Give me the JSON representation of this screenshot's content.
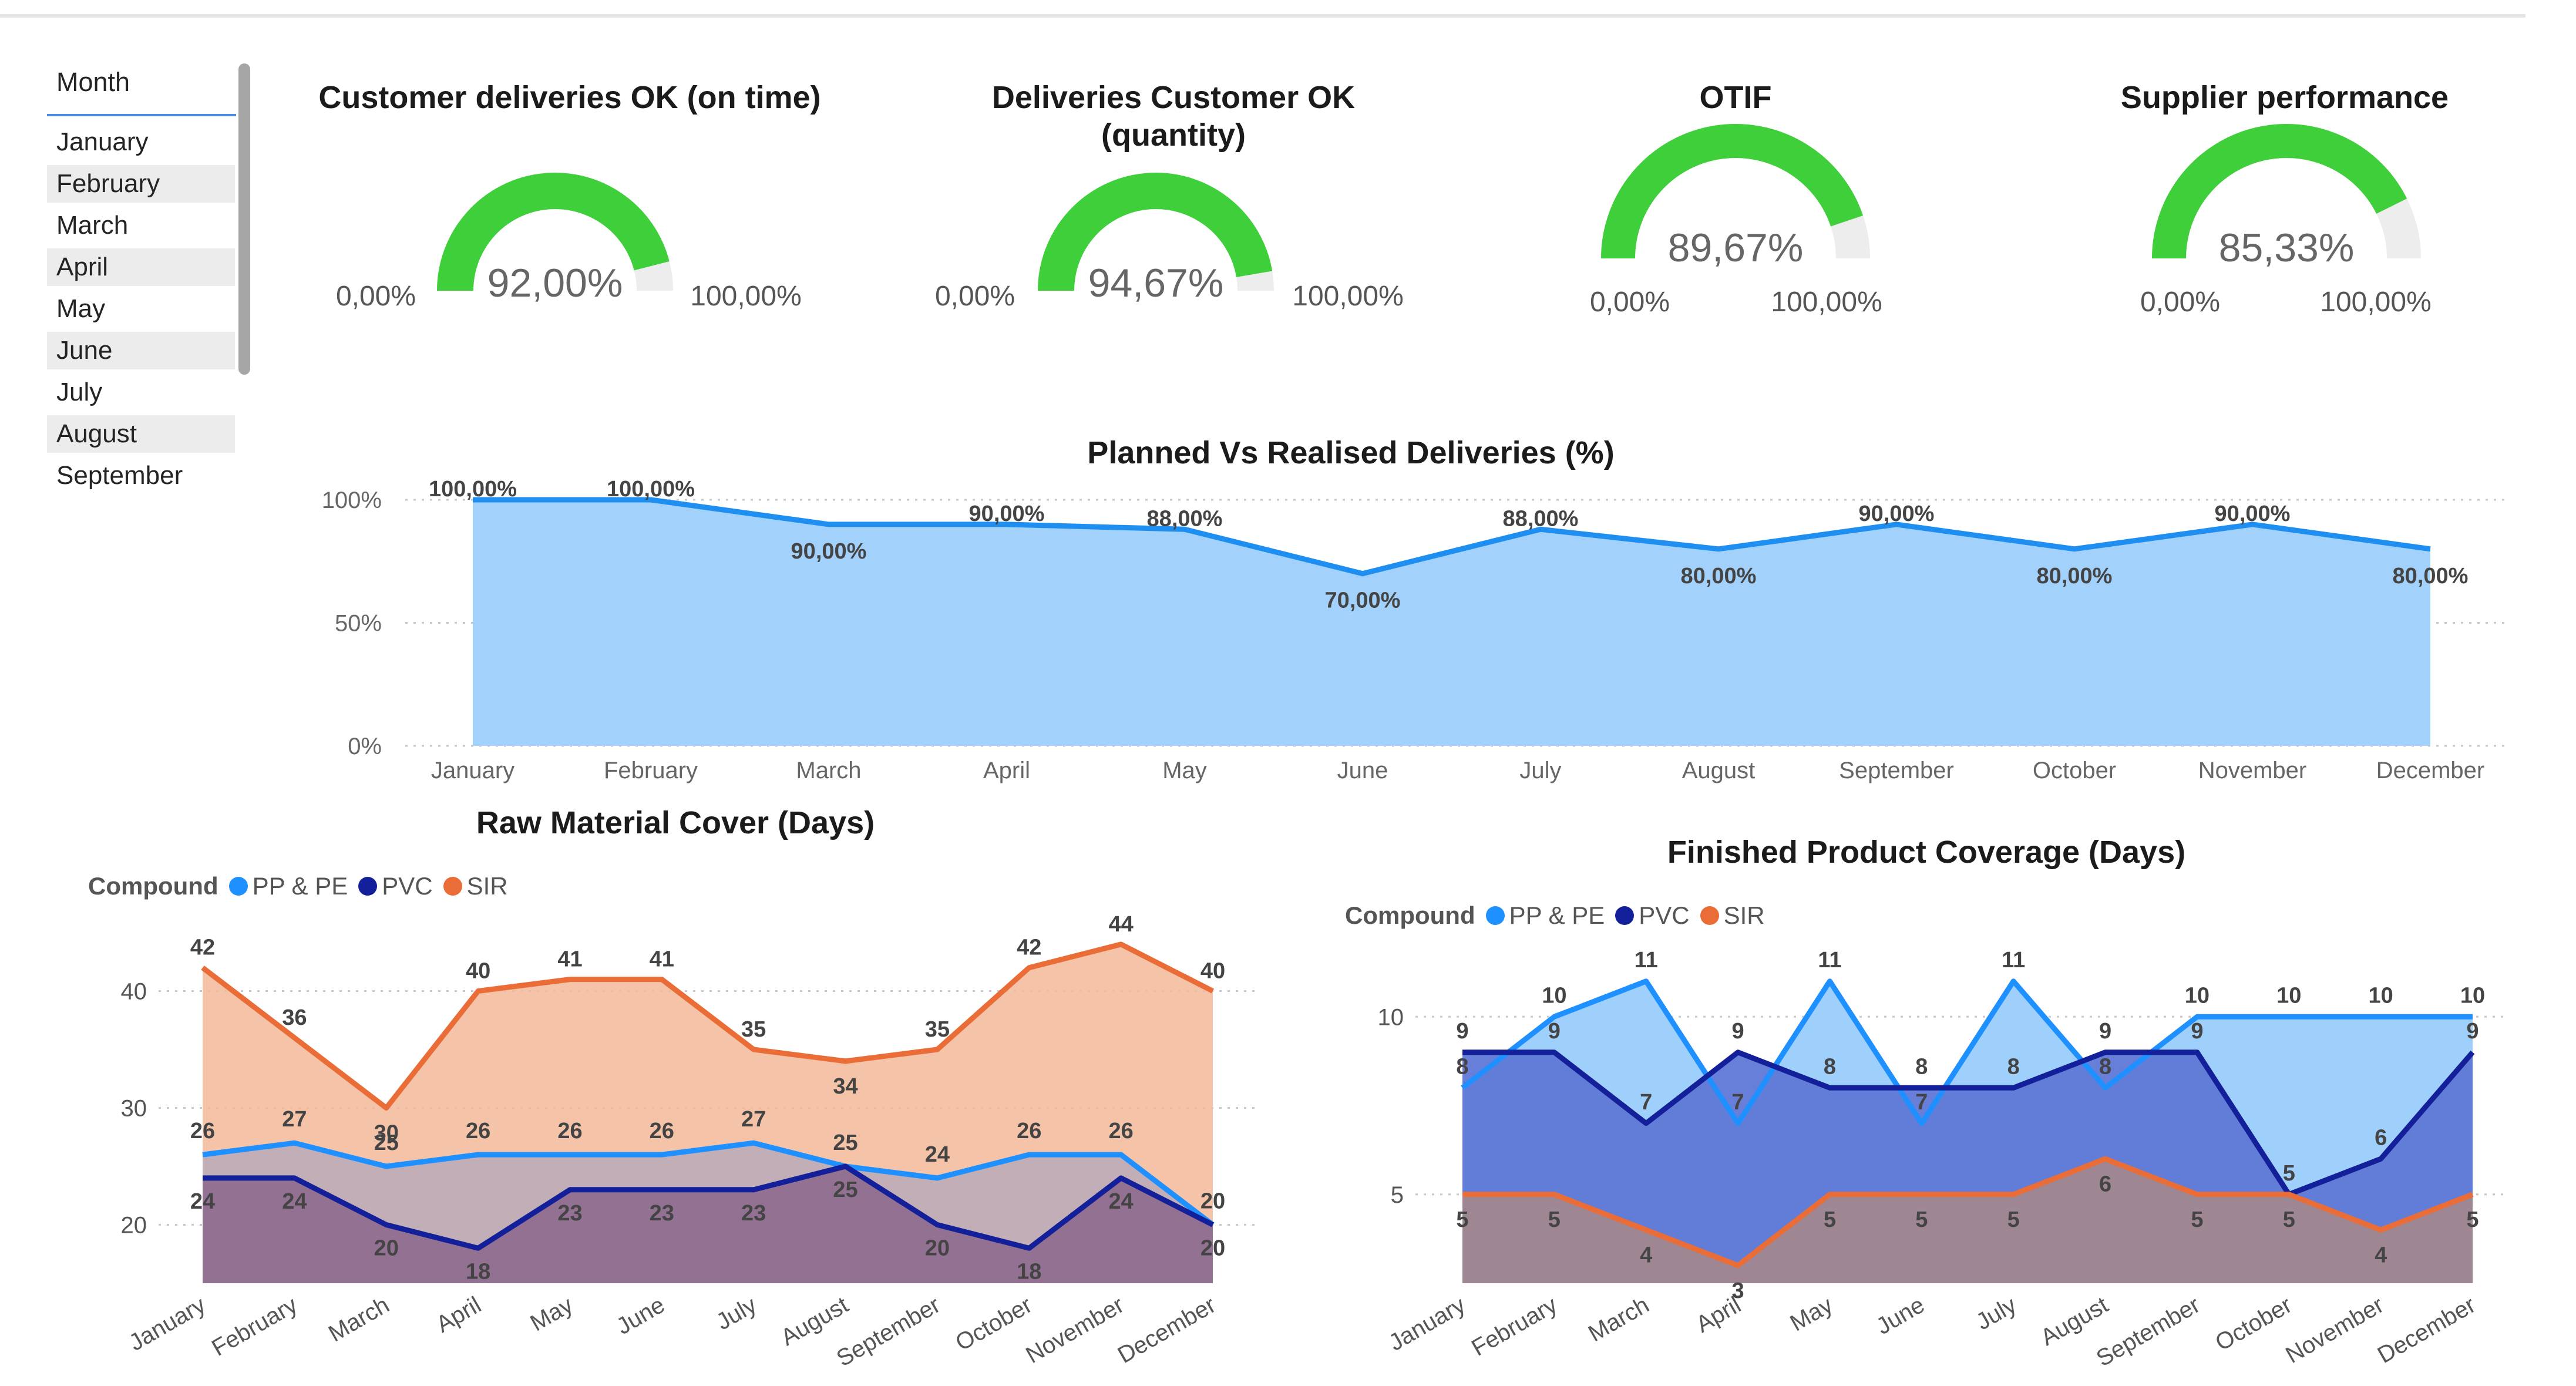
{
  "slicer": {
    "header": "Month",
    "items": [
      "January",
      "February",
      "March",
      "April",
      "May",
      "June",
      "July",
      "August",
      "September"
    ]
  },
  "gauges": [
    {
      "title_lines": [
        "Customer deliveries OK (on time)"
      ],
      "value": 92.0,
      "value_label": "92,00%",
      "min_label": "0,00%",
      "max_label": "100,00%"
    },
    {
      "title_lines": [
        "Deliveries Customer OK",
        "(quantity)"
      ],
      "value": 94.67,
      "value_label": "94,67%",
      "min_label": "0,00%",
      "max_label": "100,00%"
    },
    {
      "title_lines": [
        "OTIF"
      ],
      "value": 89.67,
      "value_label": "89,67%",
      "min_label": "0,00%",
      "max_label": "100,00%"
    },
    {
      "title_lines": [
        "Supplier performance"
      ],
      "value": 85.33,
      "value_label": "85,33%",
      "min_label": "0,00%",
      "max_label": "100,00%"
    }
  ],
  "colors": {
    "gauge_fill": "#3ecf3a",
    "gauge_bg": "#ededed",
    "pp_pe": "#1e90ff",
    "pvc": "#14209a",
    "sir": "#ea6d37",
    "planned_area": "#a2d1fc",
    "planned_line": "#1e8ff0"
  },
  "chart_data": [
    {
      "id": "planned",
      "type": "area",
      "title": "Planned Vs Realised Deliveries (%)",
      "categories": [
        "January",
        "February",
        "March",
        "April",
        "May",
        "June",
        "July",
        "August",
        "September",
        "October",
        "November",
        "December"
      ],
      "values": [
        100,
        100,
        90,
        90,
        88,
        70,
        88,
        80,
        90,
        80,
        90,
        80
      ],
      "labels": [
        "100,00%",
        "100,00%",
        "90,00%",
        "90,00%",
        "88,00%",
        "70,00%",
        "88,00%",
        "80,00%",
        "90,00%",
        "80,00%",
        "90,00%",
        "80,00%"
      ],
      "yticks": [
        "100%",
        "50%",
        "0%"
      ],
      "ylim": [
        0,
        100
      ]
    },
    {
      "id": "raw",
      "type": "area",
      "title": "Raw Material Cover (Days)",
      "legend_title": "Compound",
      "categories": [
        "January",
        "February",
        "March",
        "April",
        "May",
        "June",
        "July",
        "August",
        "September",
        "October",
        "November",
        "December"
      ],
      "series": [
        {
          "name": "PP & PE",
          "values": [
            26,
            27,
            25,
            26,
            26,
            26,
            27,
            25,
            24,
            26,
            26,
            20
          ]
        },
        {
          "name": "PVC",
          "values": [
            24,
            24,
            20,
            18,
            23,
            23,
            23,
            25,
            20,
            18,
            24,
            20
          ]
        },
        {
          "name": "SIR",
          "values": [
            42,
            36,
            30,
            40,
            41,
            41,
            35,
            34,
            35,
            42,
            44,
            40
          ]
        }
      ],
      "yticks": [
        20,
        30,
        40
      ],
      "ylim": [
        15,
        45
      ]
    },
    {
      "id": "fin",
      "type": "area",
      "title": "Finished Product Coverage (Days)",
      "legend_title": "Compound",
      "categories": [
        "January",
        "February",
        "March",
        "April",
        "May",
        "June",
        "July",
        "August",
        "September",
        "October",
        "November",
        "December"
      ],
      "series": [
        {
          "name": "PP & PE",
          "values": [
            8,
            10,
            11,
            7,
            11,
            7,
            11,
            8,
            10,
            10,
            10,
            10
          ]
        },
        {
          "name": "PVC",
          "values": [
            9,
            9,
            7,
            9,
            8,
            8,
            8,
            9,
            9,
            5,
            6,
            9
          ]
        },
        {
          "name": "SIR",
          "values": [
            5,
            5,
            4,
            3,
            5,
            5,
            5,
            6,
            5,
            5,
            4,
            5
          ]
        }
      ],
      "yticks": [
        5,
        10
      ],
      "ylim": [
        2.5,
        12.5
      ]
    }
  ]
}
